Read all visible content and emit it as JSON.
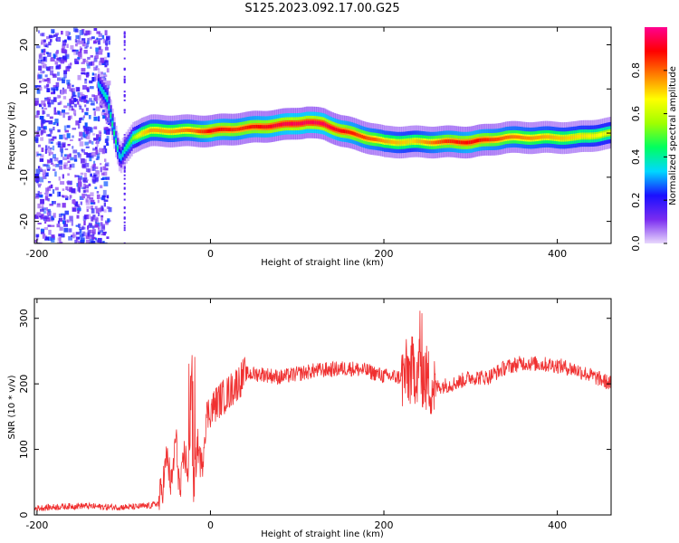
{
  "title": "S125.2023.092.17.00.G25",
  "chart_data": [
    {
      "type": "heatmap",
      "xlabel": "Height of straight line (km)",
      "ylabel": "Frequency (Hz)",
      "xlim": [
        -203,
        462
      ],
      "ylim": [
        -25,
        24
      ],
      "xticks": [
        -200,
        0,
        200,
        400
      ],
      "xtick_labels": [
        "-200",
        "0",
        "200",
        "400"
      ],
      "yticks": [
        -20,
        -10,
        0,
        10,
        20
      ],
      "ytick_labels": [
        "-20",
        "-10",
        "0",
        "10",
        "20"
      ],
      "ridge": {
        "x": [
          -130,
          -120,
          -110,
          -105,
          -100,
          -90,
          -80,
          -70,
          -50,
          -20,
          0,
          30,
          60,
          90,
          110,
          130,
          150,
          170,
          190,
          200,
          230,
          270,
          300,
          340,
          380,
          420,
          462
        ],
        "y": [
          11,
          8,
          -2,
          -6,
          -4,
          -1,
          0,
          0.5,
          0.5,
          0.5,
          0.5,
          1,
          1.5,
          2,
          2.5,
          2,
          0.5,
          -0.5,
          -1.5,
          -2,
          -2,
          -2,
          -2,
          -1,
          -1,
          -1,
          0
        ],
        "amplitude": [
          0.35,
          0.4,
          0.45,
          0.35,
          0.4,
          0.55,
          0.7,
          0.75,
          0.75,
          0.8,
          0.9,
          0.85,
          0.9,
          0.95,
          0.95,
          0.95,
          0.9,
          0.85,
          0.8,
          0.75,
          0.7,
          0.85,
          0.9,
          0.8,
          0.75,
          0.7,
          0.65
        ]
      },
      "noise_region_x": [
        -203,
        -118
      ],
      "colorbar": {
        "label": "Normalized spectral amplitude",
        "range": [
          0,
          1
        ],
        "ticks": [
          0.0,
          0.2,
          0.4,
          0.6,
          0.8
        ],
        "tick_labels": [
          "0.0",
          "0.2",
          "0.4",
          "0.6",
          "0.8"
        ],
        "colors": [
          "#e8d8fc",
          "#7a2cf0",
          "#1a10ff",
          "#00d8ff",
          "#00ff60",
          "#a0ff00",
          "#ffff00",
          "#ff8000",
          "#ff0000",
          "#ff0090"
        ]
      }
    },
    {
      "type": "line",
      "xlabel": "Height of straight line (km)",
      "ylabel": "SNR (10 * v/v)",
      "xlim": [
        -203,
        462
      ],
      "ylim": [
        0,
        330
      ],
      "xticks": [
        -200,
        0,
        200,
        400
      ],
      "xtick_labels": [
        "-200",
        "0",
        "200",
        "400"
      ],
      "yticks": [
        0,
        100,
        200,
        300
      ],
      "ytick_labels": [
        "0",
        "100",
        "200",
        "300"
      ],
      "color": "#f03030",
      "series": [
        {
          "x": [
            -203,
            -180,
            -150,
            -120,
            -90,
            -70,
            -60,
            -55,
            -50,
            -45,
            -40,
            -35,
            -30,
            -25,
            -22,
            -20,
            -15,
            -10,
            -5,
            0,
            10,
            20,
            30,
            40,
            60,
            80,
            100,
            120,
            140,
            160,
            180,
            200,
            220,
            240,
            250,
            260,
            280,
            300,
            320,
            340,
            360,
            380,
            400,
            420,
            440,
            462
          ],
          "y": [
            10,
            12,
            14,
            12,
            12,
            14,
            18,
            45,
            90,
            40,
            120,
            30,
            95,
            60,
            180,
            30,
            110,
            70,
            150,
            160,
            175,
            185,
            200,
            215,
            215,
            210,
            215,
            220,
            222,
            224,
            220,
            212,
            210,
            225,
            205,
            195,
            200,
            210,
            210,
            225,
            232,
            230,
            228,
            222,
            212,
            200
          ]
        }
      ]
    }
  ]
}
